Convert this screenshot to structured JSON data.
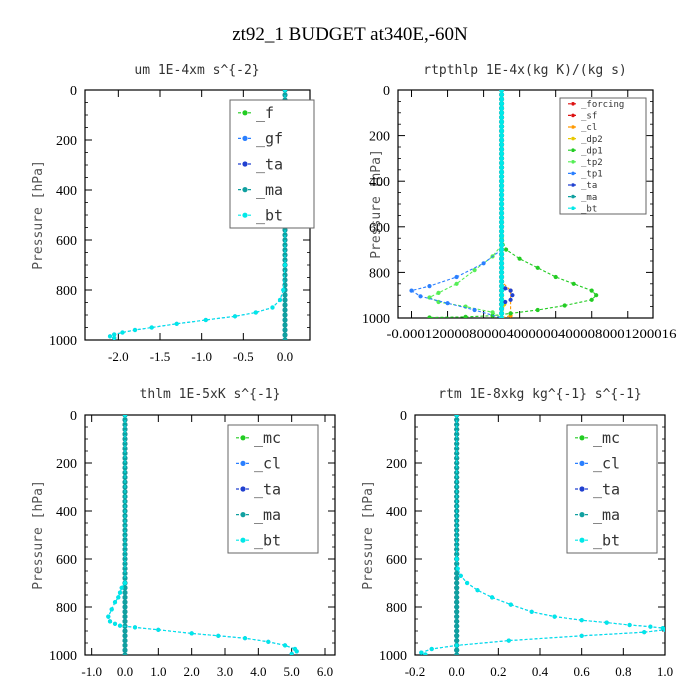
{
  "figure": {
    "title": "zt92_1  BUDGET at340E,-60N"
  },
  "colors": {
    "green": "#22cc22",
    "blue": "#2a7fff",
    "darkblue": "#2040d0",
    "teal": "#10a0a0",
    "cyan": "#00e8e8",
    "red": "#dd1111",
    "orange": "#ff9900",
    "yellow": "#e8c800",
    "lime": "#55ee55"
  },
  "chart_data": [
    {
      "type": "line",
      "title": "um  1E-4xm s^{-2}",
      "ylabel": "Pressure [hPa]",
      "xlim": [
        -2.4,
        0.3
      ],
      "ylim": [
        1000,
        0
      ],
      "yticks": [
        0,
        200,
        400,
        600,
        800,
        1000
      ],
      "xticks": [
        -2.0,
        -1.5,
        -1.0,
        -0.5,
        0.0
      ],
      "xtick_labels": [
        "-2.0",
        "-1.5",
        "-1.0",
        "-0.5",
        "0.0"
      ],
      "legend_size": "large",
      "series": [
        {
          "name": "_f",
          "color": "green",
          "x": [
            0,
            0
          ],
          "y": [
            0,
            1000
          ]
        },
        {
          "name": "_gf",
          "color": "blue",
          "x": [
            0.0,
            0.0,
            -0.02,
            -0.06,
            -0.15,
            -0.35,
            -0.6,
            -0.95,
            -1.3,
            -1.6,
            -1.8,
            -1.95,
            -2.05,
            -2.1,
            -2.05
          ],
          "y": [
            0,
            700,
            800,
            840,
            870,
            890,
            905,
            920,
            935,
            950,
            960,
            970,
            978,
            985,
            992
          ]
        },
        {
          "name": "_ta",
          "color": "darkblue",
          "x": [
            0,
            0
          ],
          "y": [
            0,
            1000
          ]
        },
        {
          "name": "_ma",
          "color": "teal",
          "x": [
            0,
            0
          ],
          "y": [
            0,
            1000
          ]
        },
        {
          "name": "_bt",
          "color": "cyan",
          "x": [
            0.0,
            0.0,
            -0.02,
            -0.06,
            -0.15,
            -0.35,
            -0.6,
            -0.95,
            -1.3,
            -1.6,
            -1.8,
            -1.95,
            -2.05,
            -2.1,
            -2.05
          ],
          "y": [
            0,
            700,
            800,
            840,
            870,
            890,
            905,
            920,
            935,
            950,
            960,
            970,
            978,
            985,
            992
          ]
        }
      ]
    },
    {
      "type": "line",
      "title": "rtpthlp  1E-4x(kg K)/(kg s)",
      "ylabel": "Pressure [hPa]",
      "xlim": [
        -0.000115,
        0.000168
      ],
      "ylim": [
        1000,
        0
      ],
      "yticks": [
        0,
        200,
        400,
        600,
        800,
        1000
      ],
      "xticks": [
        -0.0001,
        -6e-05,
        -2e-05,
        2e-05,
        6e-05,
        0.0001,
        0.00014
      ],
      "xtick_labels": [
        "-0.0001",
        "-0.00006",
        "-0.00002",
        "0.00002",
        "0.00006",
        "0.0001",
        "0.00014"
      ],
      "xtick_overlap_text": "-0.0001200008000040000004000080001200016",
      "legend_size": "small",
      "series": [
        {
          "name": "_forcing",
          "color": "red",
          "x": [
            0,
            0
          ],
          "y": [
            0,
            1000
          ]
        },
        {
          "name": "_sf",
          "color": "red",
          "x": [
            0,
            0
          ],
          "y": [
            0,
            1000
          ]
        },
        {
          "name": "_cl",
          "color": "orange",
          "x": [
            0,
            0,
            1e-05,
            1e-05,
            0
          ],
          "y": [
            0,
            840,
            880,
            990,
            1000
          ]
        },
        {
          "name": "_dp2",
          "color": "yellow",
          "x": [
            0,
            0,
            3e-06,
            0
          ],
          "y": [
            0,
            880,
            940,
            1000
          ]
        },
        {
          "name": "_dp1",
          "color": "green",
          "x": [
            0,
            5e-06,
            2e-05,
            4e-05,
            6e-05,
            8e-05,
            0.0001,
            0.000105,
            0.0001,
            7e-05,
            4e-05,
            1e-05,
            -1e-05,
            -4e-05,
            -8e-05
          ],
          "y": [
            650,
            700,
            740,
            780,
            820,
            850,
            880,
            900,
            920,
            945,
            965,
            980,
            990,
            995,
            998
          ]
        },
        {
          "name": "_tp2",
          "color": "lime",
          "x": [
            0,
            -1e-05,
            -3e-05,
            -5e-05,
            -7e-05,
            -8e-05,
            -7e-05,
            -4e-05,
            -1e-05,
            0
          ],
          "y": [
            680,
            730,
            790,
            850,
            890,
            910,
            930,
            950,
            975,
            1000
          ]
        },
        {
          "name": "_tp1",
          "color": "blue",
          "x": [
            0,
            -2e-05,
            -5e-05,
            -8e-05,
            -0.0001,
            -9e-05,
            -6e-05,
            -3e-05,
            0
          ],
          "y": [
            700,
            760,
            820,
            860,
            880,
            905,
            935,
            965,
            1000
          ]
        },
        {
          "name": "_ta",
          "color": "darkblue",
          "x": [
            0,
            0,
            4e-06,
            1e-05,
            1.2e-05,
            1e-05,
            4e-06,
            0
          ],
          "y": [
            0,
            860,
            870,
            880,
            900,
            920,
            930,
            940
          ]
        },
        {
          "name": "_ma",
          "color": "teal",
          "x": [
            0,
            0
          ],
          "y": [
            0,
            1000
          ]
        },
        {
          "name": "_bt",
          "color": "cyan",
          "x": [
            0,
            0
          ],
          "y": [
            0,
            1000
          ]
        }
      ]
    },
    {
      "type": "line",
      "title": "thlm  1E-5xK s^{-1}",
      "ylabel": "Pressure [hPa]",
      "xlim": [
        -1.2,
        6.3
      ],
      "ylim": [
        1000,
        0
      ],
      "yticks": [
        0,
        200,
        400,
        600,
        800,
        1000
      ],
      "xticks": [
        -1.0,
        0.0,
        1.0,
        2.0,
        3.0,
        4.0,
        5.0,
        6.0
      ],
      "xtick_labels": [
        "-1.0",
        "0.0",
        "1.0",
        "2.0",
        "3.0",
        "4.0",
        "5.0",
        "6.0"
      ],
      "legend_size": "large",
      "series": [
        {
          "name": "_mc",
          "color": "green",
          "x": [
            0,
            0
          ],
          "y": [
            0,
            1000
          ]
        },
        {
          "name": "_cl",
          "color": "blue",
          "x": [
            0.0,
            0.0,
            -0.1,
            -0.15,
            -0.2,
            -0.3,
            -0.4,
            -0.5,
            -0.45,
            -0.3,
            -0.15,
            0.3,
            1.0,
            2.0,
            2.8,
            3.6,
            4.3,
            4.8,
            5.1,
            5.15,
            5.0
          ],
          "y": [
            0,
            700,
            720,
            740,
            760,
            780,
            810,
            840,
            860,
            870,
            878,
            885,
            895,
            910,
            920,
            930,
            945,
            960,
            975,
            985,
            995
          ]
        },
        {
          "name": "_ta",
          "color": "darkblue",
          "x": [
            0,
            0
          ],
          "y": [
            0,
            1000
          ]
        },
        {
          "name": "_ma",
          "color": "teal",
          "x": [
            0,
            0
          ],
          "y": [
            0,
            1000
          ]
        },
        {
          "name": "_bt",
          "color": "cyan",
          "x": [
            0.0,
            0.0,
            -0.1,
            -0.15,
            -0.2,
            -0.3,
            -0.4,
            -0.5,
            -0.45,
            -0.3,
            -0.15,
            0.3,
            1.0,
            2.0,
            2.8,
            3.6,
            4.3,
            4.8,
            5.1,
            5.15,
            5.0
          ],
          "y": [
            0,
            700,
            720,
            740,
            760,
            780,
            810,
            840,
            860,
            870,
            878,
            885,
            895,
            910,
            920,
            930,
            945,
            960,
            975,
            985,
            995
          ]
        }
      ]
    },
    {
      "type": "line",
      "title": "rtm  1E-8xkg kg^{-1} s^{-1}",
      "ylabel": "Pressure [hPa]",
      "xlim": [
        -0.2,
        1.0
      ],
      "ylim": [
        1000,
        0
      ],
      "yticks": [
        0,
        200,
        400,
        600,
        800,
        1000
      ],
      "xticks": [
        -0.2,
        0.0,
        0.2,
        0.4,
        0.6,
        0.8,
        1.0
      ],
      "xtick_labels": [
        "-0.2",
        "0.0",
        "0.2",
        "0.4",
        "0.6",
        "0.8",
        "1.0"
      ],
      "legend_size": "large",
      "series": [
        {
          "name": "_mc",
          "color": "green",
          "x": [
            0,
            0
          ],
          "y": [
            0,
            1000
          ]
        },
        {
          "name": "_cl",
          "color": "blue",
          "x": [
            0.0,
            0.0,
            0.005,
            0.02,
            0.05,
            0.1,
            0.17,
            0.26,
            0.36,
            0.47,
            0.6,
            0.72,
            0.83,
            0.93,
            0.99,
            1.0,
            0.9,
            0.6,
            0.25,
            0.0,
            -0.12,
            -0.17,
            -0.15
          ],
          "y": [
            0,
            600,
            640,
            670,
            700,
            730,
            760,
            790,
            820,
            840,
            855,
            865,
            875,
            882,
            888,
            895,
            905,
            920,
            940,
            960,
            975,
            990,
            998
          ]
        },
        {
          "name": "_ta",
          "color": "darkblue",
          "x": [
            0,
            0
          ],
          "y": [
            0,
            1000
          ]
        },
        {
          "name": "_ma",
          "color": "teal",
          "x": [
            0,
            0
          ],
          "y": [
            0,
            1000
          ]
        },
        {
          "name": "_bt",
          "color": "cyan",
          "x": [
            0.0,
            0.0,
            0.005,
            0.02,
            0.05,
            0.1,
            0.17,
            0.26,
            0.36,
            0.47,
            0.6,
            0.72,
            0.83,
            0.93,
            0.99,
            1.0,
            0.9,
            0.6,
            0.25,
            0.0,
            -0.12,
            -0.17,
            -0.15
          ],
          "y": [
            0,
            600,
            640,
            670,
            700,
            730,
            760,
            790,
            820,
            840,
            855,
            865,
            875,
            882,
            888,
            895,
            905,
            920,
            940,
            960,
            975,
            990,
            998
          ]
        }
      ]
    }
  ]
}
